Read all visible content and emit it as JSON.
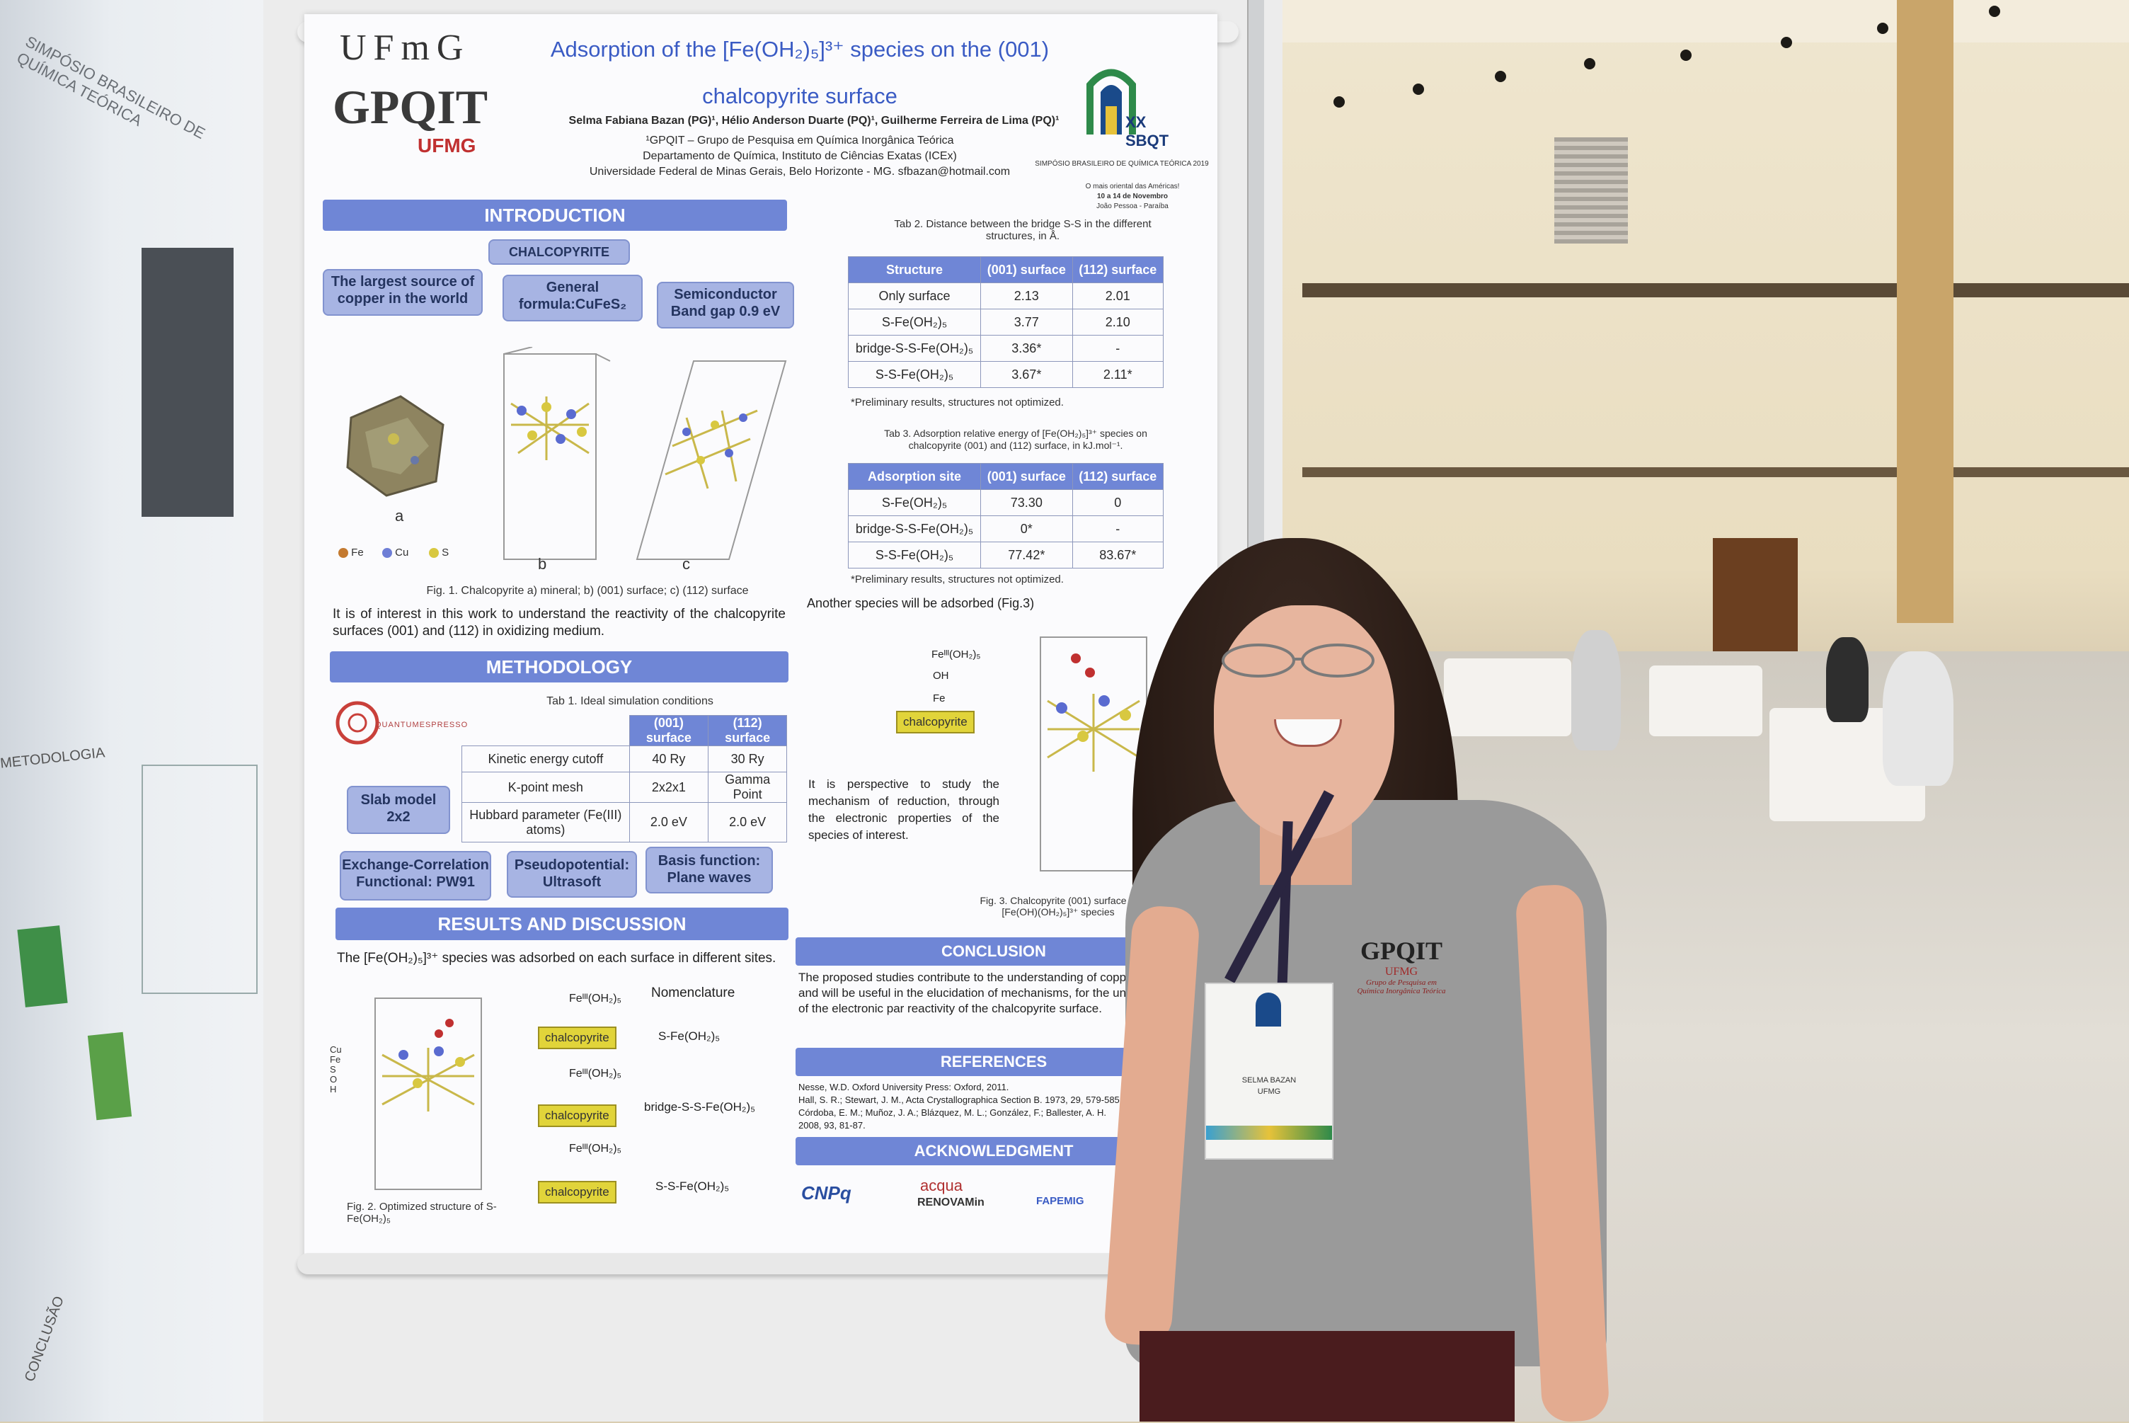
{
  "poster": {
    "ufmg": "UFmG",
    "gpqit": "GPQIT",
    "gpqit_sub": "UFMG",
    "title_line1": "Adsorption of the [Fe(OH₂)₅]³⁺ species on the (001)",
    "title_line2": "chalcopyrite surface",
    "authors": "Selma Fabiana Bazan (PG)¹, Hélio Anderson Duarte (PQ)¹, Guilherme Ferreira de Lima (PQ)¹",
    "affiliation1": "¹GPQIT – Grupo de Pesquisa em Química Inorgânica Teórica",
    "affiliation2": "Departamento de Química, Instituto de Ciências Exatas (ICEx)",
    "affiliation3": "Universidade Federal de Minas Gerais, Belo Horizonte - MG. sfbazan@hotmail.com",
    "event_logo": "XX SBQT",
    "event_name": "SIMPÓSIO BRASILEIRO DE QUÍMICA TEÓRICA 2019",
    "event_place": "O mais oriental das Américas!",
    "event_dates": "10 a 14 de Novembro",
    "event_city": "João Pessoa - Paraíba",
    "intro_banner": "INTRODUCTION",
    "chalcopyrite_pill": "CHALCOPYRITE",
    "pill_source": "The largest source of copper in the world",
    "pill_formula": "General formula:CuFeS₂",
    "pill_gap": "Semiconductor Band gap 0.9 eV",
    "fig1_a": "a",
    "fig1_b": "b",
    "fig1_c": "c",
    "legend_fe": "Fe",
    "legend_cu": "Cu",
    "legend_s": "S",
    "fig1_caption": "Fig. 1. Chalcopyrite a) mineral; b) (001) surface; c) (112) surface",
    "intro_text": "It is of interest in this work to understand the reactivity of the chalcopyrite surfaces (001) and (112) in oxidizing medium.",
    "method_banner": "METHODOLOGY",
    "qe_logo": "QUANTUMESPRESSO",
    "tab1_caption": "Tab 1. Ideal simulation conditions",
    "tab1": {
      "headers": [
        "",
        "(001) surface",
        "(112) surface"
      ],
      "rows": [
        [
          "Kinetic energy cutoff",
          "40 Ry",
          "30 Ry"
        ],
        [
          "K-point mesh",
          "2x2x1",
          "Gamma Point"
        ],
        [
          "Hubbard parameter (Fe(III) atoms)",
          "2.0 eV",
          "2.0 eV"
        ]
      ]
    },
    "pill_slab": "Slab model 2x2",
    "pill_xc": "Exchange-Correlation Functional: PW91",
    "pill_pseudo": "Pseudopotential: Ultrasoft",
    "pill_basis": "Basis function: Plane waves",
    "results_banner": "RESULTS AND DISCUSSION",
    "results_text": "The [Fe(OH₂)₅]³⁺ species was adsorbed on each surface in different sites.",
    "nomenclature": "Nomenclature",
    "fe_label": "Feᴵᴵᴵ(OH₂)₅",
    "chalco": "chalcopyrite",
    "nom1": "S-Fe(OH₂)₅",
    "nom2": "bridge-S-S-Fe(OH₂)₅",
    "nom3": "S-S-Fe(OH₂)₅",
    "fig2_caption": "Fig. 2. Optimized structure of S-Fe(OH₂)₅",
    "tab2_caption": "Tab 2. Distance between the bridge S-S in the different structures, in Å.",
    "tab2": {
      "headers": [
        "Structure",
        "(001) surface",
        "(112) surface"
      ],
      "rows": [
        [
          "Only surface",
          "2.13",
          "2.01"
        ],
        [
          "S-Fe(OH₂)₅",
          "3.77",
          "2.10"
        ],
        [
          "bridge-S-S-Fe(OH₂)₅",
          "3.36*",
          "-"
        ],
        [
          "S-S-Fe(OH₂)₅",
          "3.67*",
          "2.11*"
        ]
      ]
    },
    "tab2_note": "*Preliminary results, structures not optimized.",
    "tab3_caption": "Tab 3. Adsorption relative energy of [Fe(OH₂)₅]³⁺ species on chalcopyrite (001) and (112) surface, in kJ.mol⁻¹.",
    "tab3": {
      "headers": [
        "Adsorption site",
        "(001) surface",
        "(112) surface"
      ],
      "rows": [
        [
          "S-Fe(OH₂)₅",
          "73.30",
          "0"
        ],
        [
          "bridge-S-S-Fe(OH₂)₅",
          "0*",
          "-"
        ],
        [
          "S-S-Fe(OH₂)₅",
          "77.42*",
          "83.67*"
        ]
      ]
    },
    "tab3_note": "*Preliminary results, structures not optimized.",
    "another_species": "Another species will be adsorbed (Fig.3)",
    "fig3_fe": "Feᴵᴵᴵ(OH₂)₅",
    "fig3_oh": "OH",
    "fig3_fe2": "Fe",
    "perspective_text": "It is perspective to study the mechanism of reduction, through the electronic properties of the species of interest.",
    "fig3_caption": "Fig. 3. Chalcopyrite (001) surface w [Fe(OH)(OH₂)₅]³⁺ species",
    "conclusion_banner": "CONCLUSION",
    "conclusion_text": "The proposed studies contribute to the understanding of copper extraction and will be useful in the elucidation of mechanisms, for the understanding of the electronic par reactivity of the chalcopyrite surface.",
    "references_banner": "REFERENCES",
    "ref1": "Nesse, W.D. Oxford University Press: Oxford, 2011.",
    "ref2": "Hall, S. R.; Stewart, J. M., Acta Crystallographica Section B. 1973, 29, 579-585.",
    "ref3": "Córdoba, E. M.; Muñoz, J. A.; Blázquez, M. L.; González, F.; Ballester, A. H.",
    "ref4": "2008, 93, 81-87.",
    "ack_banner": "ACKNOWLEDGMENT",
    "cnpq": "CNPq",
    "acqua": "acqua",
    "renovamin": "RENOVAMin",
    "fapemig": "FAPEMIG",
    "legend_h": "H",
    "legend_o": "O"
  },
  "left_poster": {
    "title": "SIMPÓSIO BRASILEIRO DE QUÍMICA TEÓRICA",
    "label": "METODOLOGIA",
    "label2": "CONCLUSÃO"
  },
  "shirt": {
    "logo": "GPQIT",
    "logo_sub": "UFMG",
    "logo_tag": "Grupo de Pesquisa em Química Inorgânica Teórica"
  },
  "badge": {
    "name": "SELMA BAZAN",
    "org": "UFMG"
  },
  "colors": {
    "banner": "#6f86d6",
    "pill": "#a7b4e3",
    "chalco_box": "#e1d43a"
  }
}
